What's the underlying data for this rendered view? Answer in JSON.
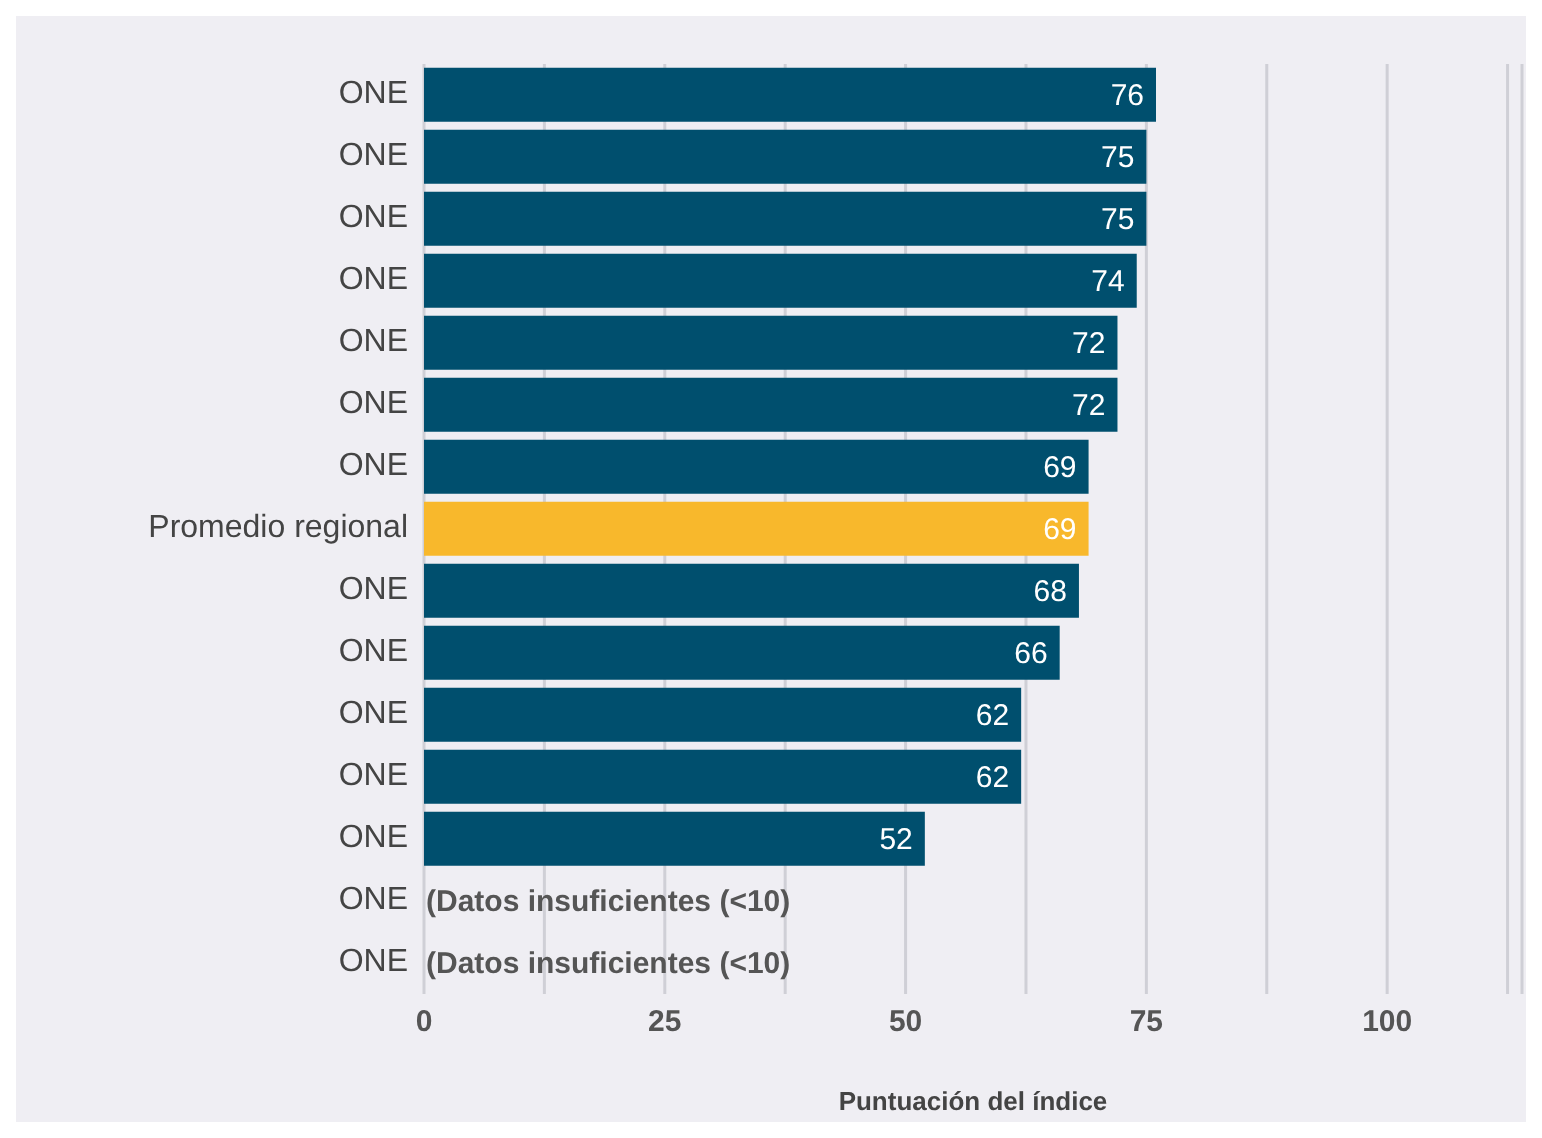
{
  "chart_data": {
    "type": "bar",
    "orientation": "horizontal",
    "xlabel": "Puntuación del índice",
    "categories": [
      "ONE",
      "ONE",
      "ONE",
      "ONE",
      "ONE",
      "ONE",
      "ONE",
      "Promedio regional",
      "ONE",
      "ONE",
      "ONE",
      "ONE",
      "ONE",
      "ONE",
      "ONE"
    ],
    "values": [
      76,
      75,
      75,
      74,
      72,
      72,
      69,
      69,
      68,
      66,
      62,
      62,
      52,
      null,
      null
    ],
    "colors": [
      "#004f6e",
      "#004f6e",
      "#004f6e",
      "#004f6e",
      "#004f6e",
      "#004f6e",
      "#004f6e",
      "#f8b82c",
      "#004f6e",
      "#004f6e",
      "#004f6e",
      "#004f6e",
      "#004f6e",
      "#004f6e",
      "#004f6e"
    ],
    "value_labels": [
      "76",
      "75",
      "75",
      "74",
      "72",
      "72",
      "69",
      "69",
      "68",
      "66",
      "62",
      "62",
      "52",
      "(Datos insuficientes (<10)",
      "(Datos insuficientes (<10)"
    ],
    "xlim": [
      0,
      114
    ],
    "xticks": [
      0,
      {
        "value": 12.5,
        "label": null
      },
      25,
      {
        "value": 37.5,
        "label": null
      },
      50,
      {
        "value": 62.5,
        "label": null
      },
      75,
      {
        "value": 87.5,
        "label": null
      },
      100,
      {
        "value": 112.5,
        "label": null
      }
    ],
    "grid": "x"
  }
}
